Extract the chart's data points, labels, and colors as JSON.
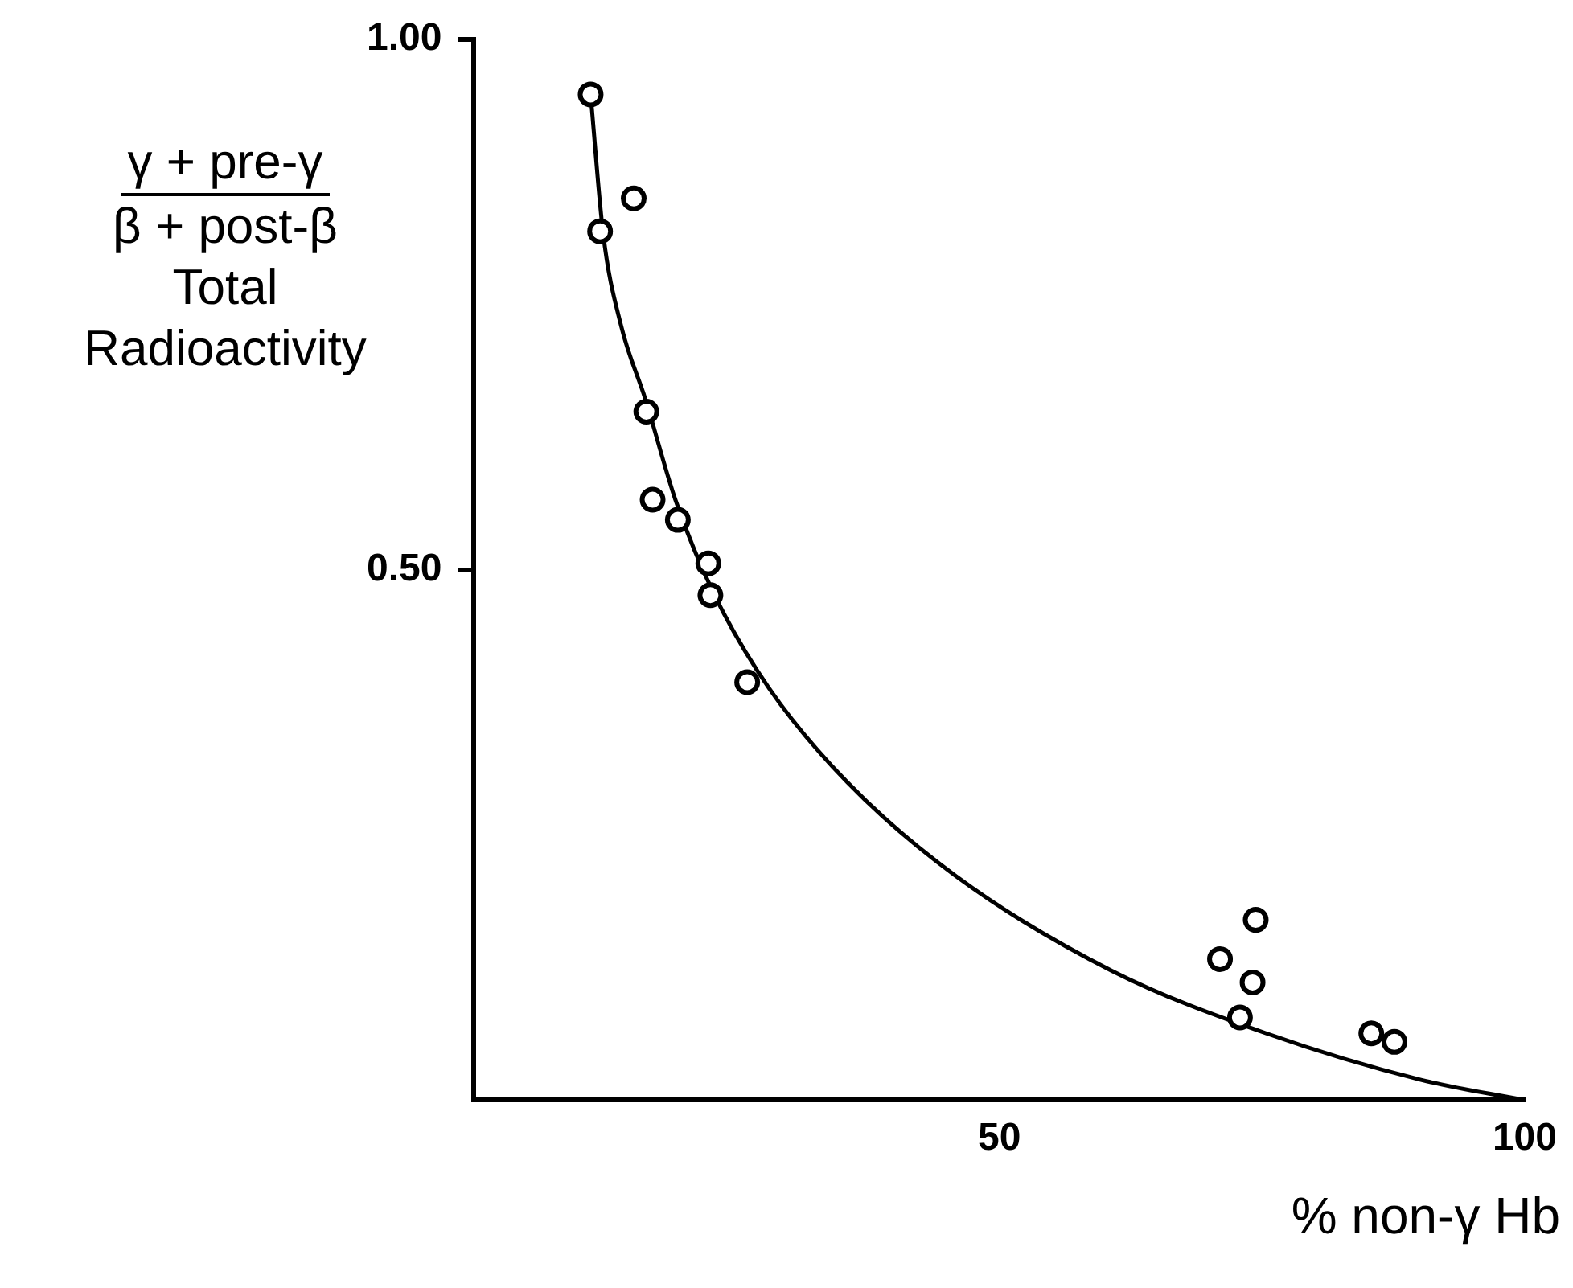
{
  "chart_data": {
    "type": "scatter",
    "xlabel": "% non-γ Hb",
    "ylabel": "γ + pre-γ\nβ + post-β\nTotal\nRadioactivity",
    "xlim": [
      0,
      100
    ],
    "ylim": [
      0,
      1
    ],
    "xticks": [
      50,
      100
    ],
    "yticks": [
      {
        "value": 0.5,
        "label": "0.50"
      },
      {
        "value": 1,
        "label": "1.00"
      }
    ],
    "grid": false,
    "legend": false,
    "marker": "circle",
    "series": [
      {
        "color": "#000000",
        "x": [
          11.1,
          15.2,
          12.0,
          16.4,
          17.0,
          19.4,
          22.3,
          22.5,
          26.0,
          74.4,
          71.0,
          74.1,
          72.9,
          85.4,
          87.6
        ],
        "values": [
          0.948,
          0.85,
          0.819,
          0.649,
          0.566,
          0.547,
          0.506,
          0.476,
          0.394,
          0.17,
          0.133,
          0.111,
          0.078,
          0.063,
          0.055
        ]
      },
      {
        "type": "line",
        "color": "#000000",
        "marker": "none",
        "line_style": "solid",
        "x": [
          11.1,
          12.3,
          14.0,
          16.3,
          19.2,
          22.9,
          28.1,
          35.5,
          45.9,
          60.7,
          75.4,
          90.2,
          100
        ],
        "values": [
          0.948,
          0.816,
          0.73,
          0.661,
          0.565,
          0.476,
          0.388,
          0.3,
          0.211,
          0.122,
          0.063,
          0.019,
          0
        ]
      }
    ]
  }
}
